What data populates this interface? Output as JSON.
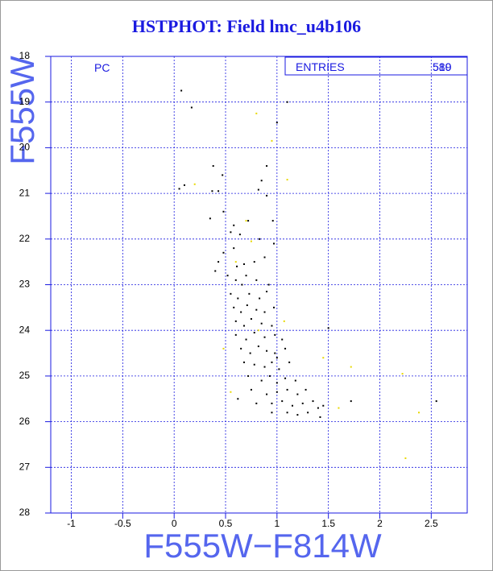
{
  "chart_data": {
    "type": "scatter",
    "title": "HSTPHOT: Field lmc_u4b106",
    "x_label": "F555W−F814W",
    "y_label": "F555W",
    "annotation": "PC",
    "stats": {
      "label": "ENTRIES",
      "values": [
        "580",
        "519"
      ]
    },
    "xlim": [
      -1.2,
      2.85
    ],
    "ylim": [
      28,
      18
    ],
    "xticks": [
      -1,
      -0.5,
      0,
      0.5,
      1,
      1.5,
      2,
      2.5
    ],
    "yticks": [
      18,
      19,
      20,
      21,
      22,
      23,
      24,
      25,
      26,
      27,
      28
    ],
    "grid": true,
    "series": [
      {
        "color": "#000000",
        "x": [
          0.07,
          0.17,
          1.1,
          1.0,
          0.38,
          0.47,
          0.1,
          0.05,
          0.37,
          0.43,
          0.9,
          0.85,
          0.9,
          0.82,
          0.48,
          0.35,
          0.58,
          0.64,
          0.55,
          0.72,
          0.96,
          0.83,
          0.97,
          0.48,
          0.58,
          0.43,
          0.61,
          0.68,
          0.78,
          0.88,
          0.4,
          0.52,
          0.6,
          0.66,
          0.7,
          0.8,
          0.92,
          0.55,
          0.62,
          0.73,
          0.83,
          0.9,
          0.58,
          0.65,
          0.71,
          0.8,
          0.88,
          0.97,
          0.6,
          0.68,
          0.75,
          0.85,
          0.95,
          0.6,
          0.7,
          0.78,
          0.88,
          0.98,
          1.05,
          0.65,
          0.74,
          0.82,
          0.9,
          0.98,
          1.08,
          0.68,
          0.78,
          0.88,
          0.95,
          1.02,
          1.12,
          0.72,
          0.85,
          0.93,
          1.0,
          1.08,
          1.18,
          0.75,
          0.9,
          1.0,
          1.1,
          1.2,
          1.28,
          0.8,
          0.95,
          1.05,
          1.15,
          1.25,
          1.35,
          1.1,
          1.2,
          1.3,
          1.4,
          1.45,
          1.5,
          1.42,
          1.72,
          2.55,
          1.0,
          0.95,
          0.62
        ],
        "values": [
          18.75,
          19.12,
          19.0,
          19.45,
          20.4,
          20.6,
          20.82,
          20.9,
          20.95,
          20.95,
          20.4,
          20.72,
          21.05,
          20.92,
          21.4,
          21.55,
          21.7,
          21.9,
          21.85,
          21.6,
          21.6,
          22.0,
          22.1,
          22.3,
          22.2,
          22.5,
          22.6,
          22.55,
          22.5,
          22.4,
          22.7,
          22.8,
          22.9,
          23.0,
          22.8,
          22.9,
          23.0,
          23.2,
          23.3,
          23.2,
          23.3,
          23.15,
          23.5,
          23.6,
          23.45,
          23.55,
          23.6,
          23.5,
          23.8,
          23.9,
          23.75,
          23.85,
          23.9,
          24.1,
          24.2,
          24.05,
          24.15,
          24.1,
          24.2,
          24.4,
          24.5,
          24.35,
          24.45,
          24.5,
          24.4,
          24.7,
          24.75,
          24.8,
          24.7,
          24.85,
          24.7,
          25.0,
          25.1,
          25.0,
          25.15,
          25.05,
          25.1,
          25.3,
          25.4,
          25.35,
          25.3,
          25.4,
          25.3,
          25.6,
          25.6,
          25.55,
          25.65,
          25.6,
          25.55,
          25.8,
          25.85,
          25.8,
          25.7,
          25.65,
          23.95,
          25.9,
          25.55,
          25.55,
          24.6,
          25.8,
          25.5
        ]
      },
      {
        "color": "#e8d800",
        "x": [
          0.8,
          0.95,
          1.1,
          0.7,
          0.75,
          0.6,
          1.07,
          1.45,
          1.72,
          2.22,
          0.55,
          1.6,
          2.38,
          2.25,
          0.82,
          0.2,
          0.48
        ],
        "values": [
          19.25,
          19.85,
          20.7,
          21.6,
          22.05,
          22.5,
          23.8,
          24.6,
          24.8,
          24.95,
          25.35,
          25.7,
          25.8,
          26.8,
          24.0,
          20.8,
          24.4
        ]
      }
    ]
  }
}
